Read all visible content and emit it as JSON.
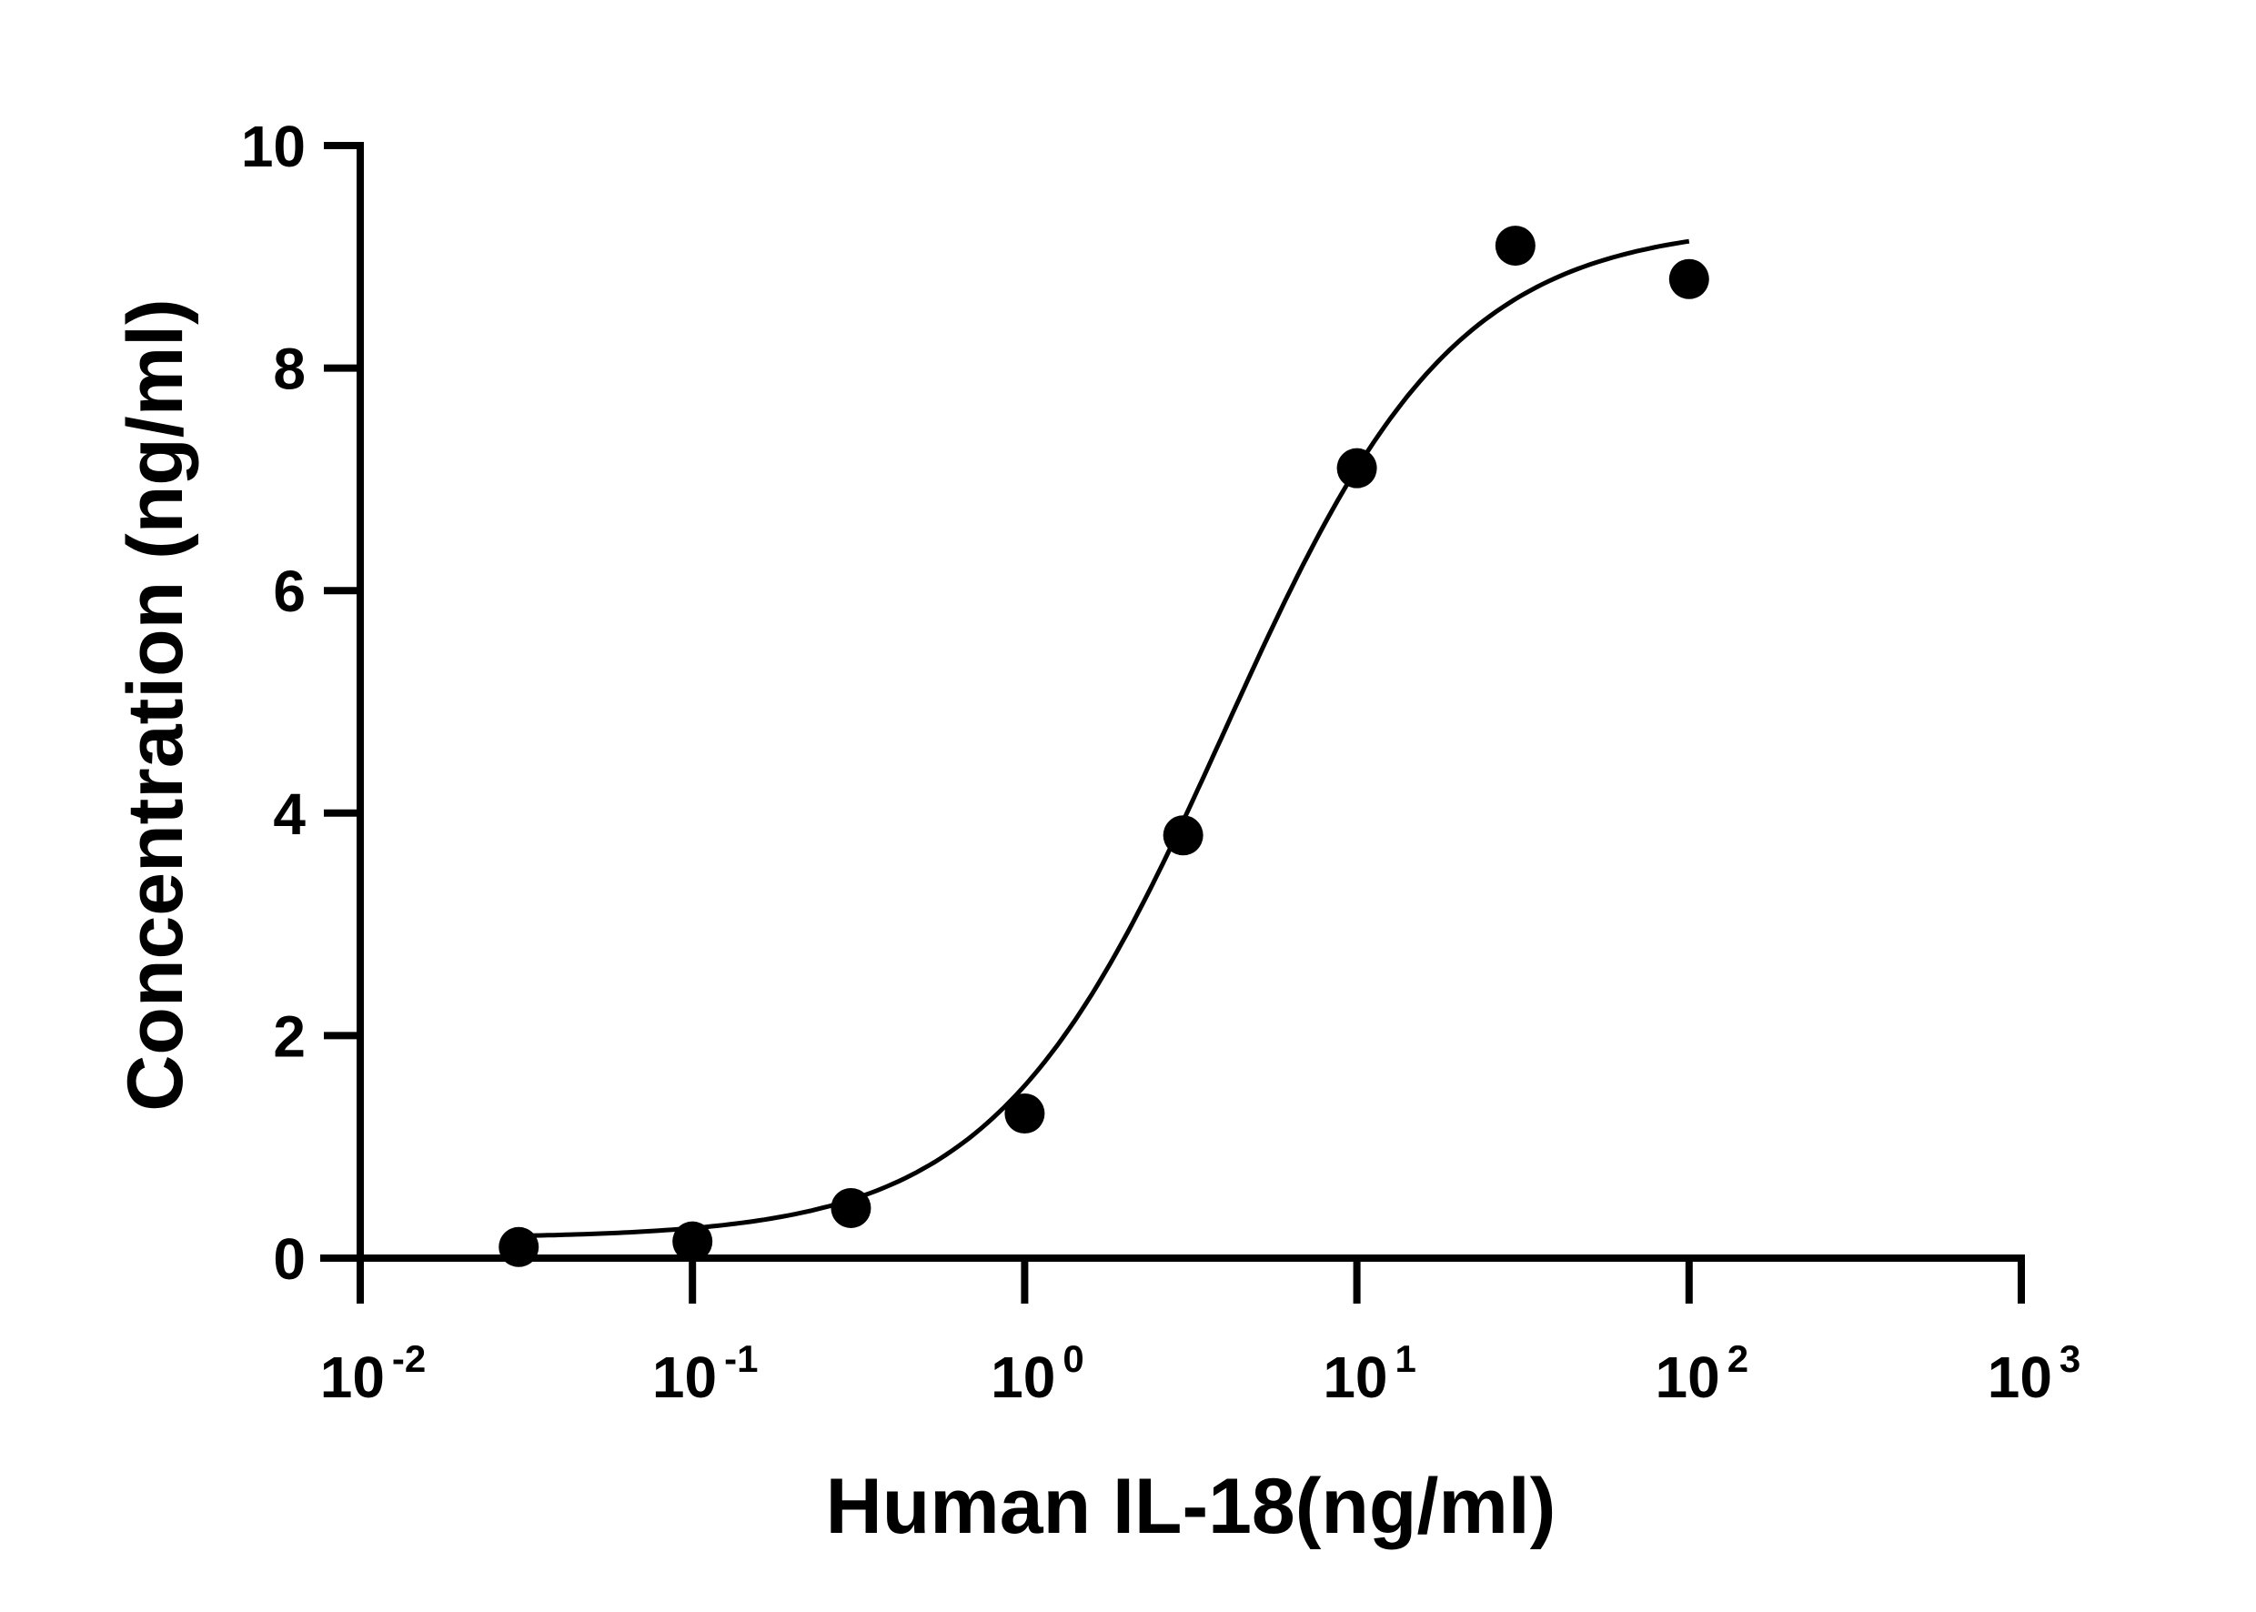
{
  "chart_data": {
    "type": "scatter",
    "title": "",
    "xlabel": "Human IL-18(ng/ml)",
    "ylabel": "Concentration (ng/ml)",
    "x_scale": "log",
    "xlim": [
      0.01,
      1000
    ],
    "ylim": [
      0,
      10
    ],
    "grid": false,
    "x_ticks": [
      {
        "base": "10",
        "exp": "-2",
        "value": 0.01
      },
      {
        "base": "10",
        "exp": "-1",
        "value": 0.1
      },
      {
        "base": "10",
        "exp": "0",
        "value": 1
      },
      {
        "base": "10",
        "exp": "1",
        "value": 10
      },
      {
        "base": "10",
        "exp": "2",
        "value": 100
      },
      {
        "base": "10",
        "exp": "3",
        "value": 1000
      }
    ],
    "y_ticks": [
      {
        "label": "0",
        "value": 0
      },
      {
        "label": "2",
        "value": 2
      },
      {
        "label": "4",
        "value": 4
      },
      {
        "label": "6",
        "value": 6
      },
      {
        "label": "8",
        "value": 8
      },
      {
        "label": "10",
        "value": 10
      }
    ],
    "points": [
      {
        "x": 0.03,
        "y": 0.1
      },
      {
        "x": 0.1,
        "y": 0.15
      },
      {
        "x": 0.3,
        "y": 0.45
      },
      {
        "x": 1,
        "y": 1.3
      },
      {
        "x": 3,
        "y": 3.8
      },
      {
        "x": 10,
        "y": 7.1
      },
      {
        "x": 30,
        "y": 9.1
      },
      {
        "x": 100,
        "y": 8.8
      }
    ],
    "fit_curve": {
      "bottom": 0.18,
      "top": 9.3,
      "ec50": 4.0,
      "hill": 1.25,
      "x_range": [
        0.03,
        100
      ]
    }
  }
}
